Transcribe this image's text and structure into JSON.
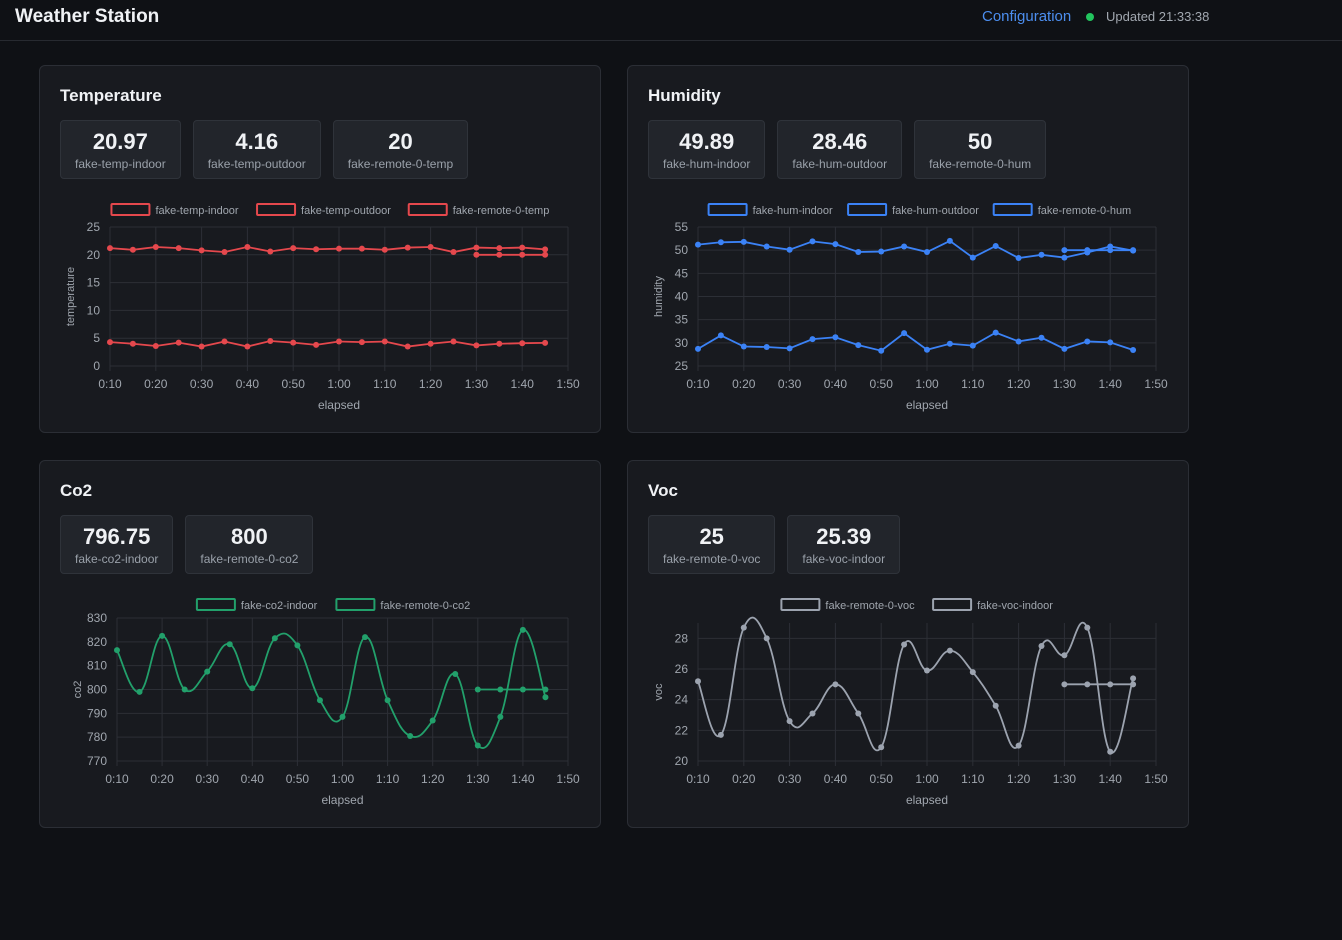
{
  "header": {
    "title": "Weather Station",
    "config_label": "Configuration",
    "updated_text": "Updated 21:33:38",
    "status_color": "#22c55e"
  },
  "xticks": [
    "0:10",
    "0:20",
    "0:30",
    "0:40",
    "0:50",
    "1:00",
    "1:10",
    "1:20",
    "1:30",
    "1:40",
    "1:50"
  ],
  "cards": [
    {
      "title": "Temperature",
      "stats": [
        {
          "value": "20.97",
          "label": "fake-temp-indoor"
        },
        {
          "value": "4.16",
          "label": "fake-temp-outdoor"
        },
        {
          "value": "20",
          "label": "fake-remote-0-temp"
        }
      ],
      "legend": [
        "fake-temp-indoor",
        "fake-temp-outdoor",
        "fake-remote-0-temp"
      ],
      "ylabel": "temperature",
      "xlabel": "elapsed"
    },
    {
      "title": "Humidity",
      "stats": [
        {
          "value": "49.89",
          "label": "fake-hum-indoor"
        },
        {
          "value": "28.46",
          "label": "fake-hum-outdoor"
        },
        {
          "value": "50",
          "label": "fake-remote-0-hum"
        }
      ],
      "legend": [
        "fake-hum-indoor",
        "fake-hum-outdoor",
        "fake-remote-0-hum"
      ],
      "ylabel": "humidity",
      "xlabel": "elapsed"
    },
    {
      "title": "Co2",
      "stats": [
        {
          "value": "796.75",
          "label": "fake-co2-indoor"
        },
        {
          "value": "800",
          "label": "fake-remote-0-co2"
        }
      ],
      "legend": [
        "fake-co2-indoor",
        "fake-remote-0-co2"
      ],
      "ylabel": "co2",
      "xlabel": "elapsed"
    },
    {
      "title": "Voc",
      "stats": [
        {
          "value": "25",
          "label": "fake-remote-0-voc"
        },
        {
          "value": "25.39",
          "label": "fake-voc-indoor"
        }
      ],
      "legend": [
        "fake-remote-0-voc",
        "fake-voc-indoor"
      ],
      "ylabel": "voc",
      "xlabel": "elapsed"
    }
  ],
  "chart_data": [
    {
      "type": "line",
      "title": "",
      "xlabel": "elapsed",
      "ylabel": "temperature",
      "x_unit": "seconds elapsed",
      "xlim": [
        10,
        110
      ],
      "ylim": [
        0,
        25
      ],
      "yticks": [
        0,
        5,
        10,
        15,
        20,
        25
      ],
      "grid": true,
      "legend_position": "top",
      "color": "#e5484d",
      "smooth": false,
      "series": [
        {
          "name": "fake-temp-indoor",
          "x": [
            10,
            15,
            20,
            25,
            30,
            35,
            40,
            45,
            50,
            55,
            60,
            65,
            70,
            75,
            80,
            85,
            90,
            95,
            100,
            105
          ],
          "values": [
            21.2,
            20.9,
            21.4,
            21.2,
            20.8,
            20.5,
            21.4,
            20.6,
            21.2,
            21.0,
            21.1,
            21.1,
            20.9,
            21.3,
            21.4,
            20.5,
            21.3,
            21.2,
            21.3,
            20.97
          ]
        },
        {
          "name": "fake-temp-outdoor",
          "x": [
            10,
            15,
            20,
            25,
            30,
            35,
            40,
            45,
            50,
            55,
            60,
            65,
            70,
            75,
            80,
            85,
            90,
            95,
            100,
            105
          ],
          "values": [
            4.3,
            4.0,
            3.6,
            4.2,
            3.5,
            4.4,
            3.5,
            4.5,
            4.2,
            3.8,
            4.4,
            4.3,
            4.4,
            3.5,
            4.0,
            4.4,
            3.7,
            4.0,
            4.1,
            4.16
          ]
        },
        {
          "name": "fake-remote-0-temp",
          "x": [
            90,
            95,
            100,
            105
          ],
          "values": [
            20,
            20,
            20,
            20
          ]
        }
      ]
    },
    {
      "type": "line",
      "title": "",
      "xlabel": "elapsed",
      "ylabel": "humidity",
      "x_unit": "seconds elapsed",
      "xlim": [
        10,
        110
      ],
      "ylim": [
        25,
        55
      ],
      "yticks": [
        25,
        30,
        35,
        40,
        45,
        50,
        55
      ],
      "grid": true,
      "legend_position": "top",
      "color": "#3b82f6",
      "smooth": false,
      "series": [
        {
          "name": "fake-hum-indoor",
          "x": [
            10,
            15,
            20,
            25,
            30,
            35,
            40,
            45,
            50,
            55,
            60,
            65,
            70,
            75,
            80,
            85,
            90,
            95,
            100,
            105
          ],
          "values": [
            51.2,
            51.7,
            51.8,
            50.8,
            50.1,
            51.9,
            51.3,
            49.6,
            49.7,
            50.8,
            49.6,
            52.0,
            48.4,
            50.9,
            48.3,
            49.0,
            48.4,
            49.5,
            50.8,
            49.89
          ]
        },
        {
          "name": "fake-hum-outdoor",
          "x": [
            10,
            15,
            20,
            25,
            30,
            35,
            40,
            45,
            50,
            55,
            60,
            65,
            70,
            75,
            80,
            85,
            90,
            95,
            100,
            105
          ],
          "values": [
            28.7,
            31.6,
            29.2,
            29.1,
            28.8,
            30.8,
            31.2,
            29.5,
            28.3,
            32.1,
            28.5,
            29.8,
            29.4,
            32.2,
            30.3,
            31.1,
            28.7,
            30.3,
            30.1,
            28.46
          ]
        },
        {
          "name": "fake-remote-0-hum",
          "x": [
            90,
            95,
            100,
            105
          ],
          "values": [
            50,
            50,
            50,
            50
          ]
        }
      ]
    },
    {
      "type": "line",
      "title": "",
      "xlabel": "elapsed",
      "ylabel": "co2",
      "x_unit": "seconds elapsed",
      "xlim": [
        10,
        110
      ],
      "ylim": [
        770,
        830
      ],
      "yticks": [
        770,
        780,
        790,
        800,
        810,
        820,
        830
      ],
      "grid": true,
      "legend_position": "top",
      "color": "#22a06b",
      "smooth": true,
      "series": [
        {
          "name": "fake-co2-indoor",
          "x": [
            10,
            15,
            20,
            25,
            30,
            35,
            40,
            45,
            50,
            55,
            60,
            65,
            70,
            75,
            80,
            85,
            90,
            95,
            100,
            105
          ],
          "values": [
            816.5,
            799,
            822.5,
            800,
            807.5,
            819,
            800.5,
            821.5,
            818.5,
            795.5,
            788.5,
            822,
            795.5,
            780.5,
            787,
            806.5,
            776.5,
            788.5,
            825,
            796.75
          ]
        },
        {
          "name": "fake-remote-0-co2",
          "x": [
            90,
            95,
            100,
            105
          ],
          "values": [
            800,
            800,
            800,
            800
          ]
        }
      ]
    },
    {
      "type": "line",
      "title": "",
      "xlabel": "elapsed",
      "ylabel": "voc",
      "x_unit": "seconds elapsed",
      "xlim": [
        10,
        110
      ],
      "ylim": [
        20,
        29
      ],
      "yticks": [
        20,
        22,
        24,
        26,
        28
      ],
      "grid": true,
      "legend_position": "top",
      "color": "#9ca3af",
      "smooth": true,
      "series": [
        {
          "name": "fake-remote-0-voc",
          "x": [
            90,
            95,
            100,
            105
          ],
          "values": [
            25,
            25,
            25,
            25
          ]
        },
        {
          "name": "fake-voc-indoor",
          "x": [
            10,
            15,
            20,
            25,
            30,
            35,
            40,
            45,
            50,
            55,
            60,
            65,
            70,
            75,
            80,
            85,
            90,
            95,
            100,
            105
          ],
          "values": [
            25.2,
            21.7,
            28.7,
            28.0,
            22.6,
            23.1,
            25.0,
            23.1,
            20.9,
            27.6,
            25.9,
            27.2,
            25.8,
            23.6,
            21.0,
            27.5,
            26.9,
            28.7,
            20.6,
            25.39
          ]
        }
      ]
    }
  ]
}
